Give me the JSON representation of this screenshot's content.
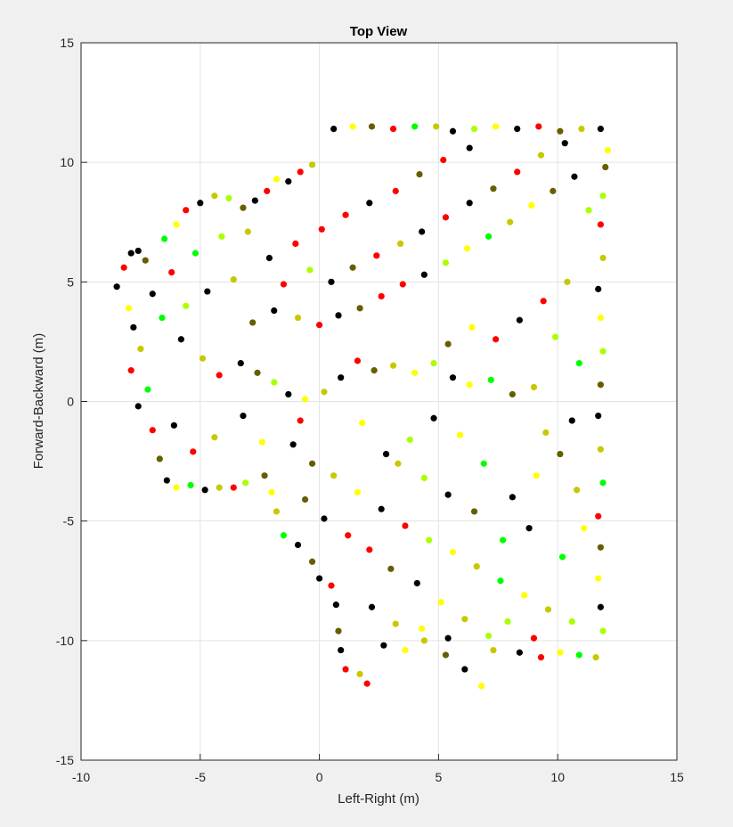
{
  "chart_data": {
    "type": "scatter",
    "title": "Top View",
    "xlabel": "Left-Right (m)",
    "ylabel": "Forward-Backward (m)",
    "xlim": [
      -10,
      15
    ],
    "ylim": [
      -15,
      15
    ],
    "xticks": [
      -10,
      -5,
      0,
      5,
      10,
      15
    ],
    "yticks": [
      -15,
      -10,
      -5,
      0,
      5,
      10,
      15
    ],
    "xtick_labels": [
      "-10",
      "-5",
      "0",
      "5",
      "10",
      "15"
    ],
    "ytick_labels": [
      "-15",
      "-10",
      "-5",
      "0",
      "5",
      "10",
      "15"
    ],
    "grid": true,
    "legend": "none",
    "point_colors": [
      "#000000",
      "#ff0000",
      "#ffff00",
      "#00ff00",
      "#c8c800",
      "#665e00",
      "#aaff00"
    ],
    "region_note": "point cloud of ~2500 markers; sampled representative points below",
    "series": [
      {
        "values": [
          [
            -8.5,
            4.8
          ],
          [
            -8.2,
            5.6
          ],
          [
            -7.9,
            6.2
          ],
          [
            -7.6,
            6.3
          ],
          [
            -7.3,
            5.9
          ],
          [
            -8.0,
            3.9
          ],
          [
            -7.8,
            3.1
          ],
          [
            -7.5,
            2.2
          ],
          [
            -7.9,
            1.3
          ],
          [
            -7.2,
            0.5
          ],
          [
            -7.6,
            -0.2
          ],
          [
            -7.0,
            -1.2
          ],
          [
            -6.7,
            -2.4
          ],
          [
            -6.4,
            -3.3
          ],
          [
            -6.0,
            -3.6
          ],
          [
            -5.4,
            -3.5
          ],
          [
            -4.8,
            -3.7
          ],
          [
            -4.2,
            -3.6
          ],
          [
            -3.6,
            -3.6
          ],
          [
            -3.1,
            -3.4
          ],
          [
            -6.5,
            6.8
          ],
          [
            -6.0,
            7.4
          ],
          [
            -5.6,
            8.0
          ],
          [
            -5.0,
            8.3
          ],
          [
            -4.4,
            8.6
          ],
          [
            -3.8,
            8.5
          ],
          [
            -3.2,
            8.1
          ],
          [
            -2.7,
            8.4
          ],
          [
            -2.2,
            8.8
          ],
          [
            -1.8,
            9.3
          ],
          [
            -1.3,
            9.2
          ],
          [
            -0.8,
            9.6
          ],
          [
            -0.3,
            9.9
          ],
          [
            0.6,
            11.4
          ],
          [
            1.4,
            11.5
          ],
          [
            2.2,
            11.5
          ],
          [
            3.1,
            11.4
          ],
          [
            4.0,
            11.5
          ],
          [
            4.9,
            11.5
          ],
          [
            5.6,
            11.3
          ],
          [
            6.5,
            11.4
          ],
          [
            7.4,
            11.5
          ],
          [
            8.3,
            11.4
          ],
          [
            9.2,
            11.5
          ],
          [
            10.1,
            11.3
          ],
          [
            11.0,
            11.4
          ],
          [
            11.8,
            11.4
          ],
          [
            12.1,
            10.5
          ],
          [
            12.0,
            9.8
          ],
          [
            11.9,
            8.6
          ],
          [
            11.8,
            7.4
          ],
          [
            11.9,
            6.0
          ],
          [
            11.7,
            4.7
          ],
          [
            11.8,
            3.5
          ],
          [
            11.9,
            2.1
          ],
          [
            11.8,
            0.7
          ],
          [
            11.7,
            -0.6
          ],
          [
            11.8,
            -2.0
          ],
          [
            11.9,
            -3.4
          ],
          [
            11.7,
            -4.8
          ],
          [
            11.8,
            -6.1
          ],
          [
            11.7,
            -7.4
          ],
          [
            11.8,
            -8.6
          ],
          [
            11.9,
            -9.6
          ],
          [
            11.6,
            -10.7
          ],
          [
            10.9,
            -10.6
          ],
          [
            10.1,
            -10.5
          ],
          [
            9.3,
            -10.7
          ],
          [
            8.4,
            -10.5
          ],
          [
            7.3,
            -10.4
          ],
          [
            6.8,
            -11.9
          ],
          [
            6.1,
            -11.2
          ],
          [
            5.3,
            -10.6
          ],
          [
            4.4,
            -10.0
          ],
          [
            3.6,
            -10.4
          ],
          [
            2.7,
            -10.2
          ],
          [
            2.0,
            -11.8
          ],
          [
            1.7,
            -11.4
          ],
          [
            1.1,
            -11.2
          ],
          [
            0.9,
            -10.4
          ],
          [
            0.8,
            -9.6
          ],
          [
            0.7,
            -8.5
          ],
          [
            0.5,
            -7.7
          ],
          [
            0.0,
            -7.4
          ],
          [
            -0.3,
            -6.7
          ],
          [
            -0.9,
            -6.0
          ],
          [
            -1.5,
            -5.6
          ],
          [
            -1.8,
            -4.6
          ],
          [
            -2.0,
            -3.8
          ],
          [
            -2.3,
            -3.1
          ],
          [
            -5.8,
            2.6
          ],
          [
            -4.9,
            1.8
          ],
          [
            -4.2,
            1.1
          ],
          [
            -3.3,
            1.6
          ],
          [
            -2.6,
            1.2
          ],
          [
            -1.9,
            0.8
          ],
          [
            -1.3,
            0.3
          ],
          [
            -0.6,
            0.1
          ],
          [
            0.2,
            0.4
          ],
          [
            0.9,
            1.0
          ],
          [
            1.6,
            1.7
          ],
          [
            2.3,
            1.3
          ],
          [
            3.1,
            1.5
          ],
          [
            4.0,
            1.2
          ],
          [
            4.8,
            1.6
          ],
          [
            5.6,
            1.0
          ],
          [
            6.3,
            0.7
          ],
          [
            7.2,
            0.9
          ],
          [
            8.1,
            0.3
          ],
          [
            9.0,
            0.6
          ],
          [
            -2.8,
            3.3
          ],
          [
            -1.9,
            3.8
          ],
          [
            -0.9,
            3.5
          ],
          [
            0.0,
            3.2
          ],
          [
            0.8,
            3.6
          ],
          [
            1.7,
            3.9
          ],
          [
            2.6,
            4.4
          ],
          [
            3.5,
            4.9
          ],
          [
            4.4,
            5.3
          ],
          [
            5.3,
            5.8
          ],
          [
            6.2,
            6.4
          ],
          [
            7.1,
            6.9
          ],
          [
            8.0,
            7.5
          ],
          [
            8.9,
            8.2
          ],
          [
            9.8,
            8.8
          ],
          [
            10.7,
            9.4
          ],
          [
            -1.0,
            6.6
          ],
          [
            0.1,
            7.2
          ],
          [
            1.1,
            7.8
          ],
          [
            2.1,
            8.3
          ],
          [
            3.2,
            8.8
          ],
          [
            4.2,
            9.5
          ],
          [
            5.2,
            10.1
          ],
          [
            6.3,
            10.6
          ],
          [
            -3.6,
            5.1
          ],
          [
            -4.7,
            4.6
          ],
          [
            -5.6,
            4.0
          ],
          [
            -6.6,
            3.5
          ],
          [
            -3.2,
            -0.6
          ],
          [
            -4.4,
            -1.5
          ],
          [
            -5.3,
            -2.1
          ],
          [
            -6.1,
            -1.0
          ],
          [
            -1.1,
            -1.8
          ],
          [
            -0.3,
            -2.6
          ],
          [
            0.6,
            -3.1
          ],
          [
            1.6,
            -3.8
          ],
          [
            2.6,
            -4.5
          ],
          [
            3.6,
            -5.2
          ],
          [
            4.6,
            -5.8
          ],
          [
            5.6,
            -6.3
          ],
          [
            6.6,
            -6.9
          ],
          [
            7.6,
            -7.5
          ],
          [
            8.6,
            -8.1
          ],
          [
            9.6,
            -8.7
          ],
          [
            10.6,
            -9.2
          ],
          [
            2.1,
            -6.2
          ],
          [
            3.0,
            -7.0
          ],
          [
            4.1,
            -7.6
          ],
          [
            5.1,
            -8.4
          ],
          [
            6.1,
            -9.1
          ],
          [
            7.1,
            -9.8
          ],
          [
            8.1,
            -4.0
          ],
          [
            9.1,
            -3.1
          ],
          [
            10.1,
            -2.2
          ],
          [
            6.9,
            -2.6
          ],
          [
            5.9,
            -1.4
          ],
          [
            4.8,
            -0.7
          ],
          [
            3.8,
            -1.6
          ],
          [
            2.8,
            -2.2
          ],
          [
            1.8,
            -0.9
          ],
          [
            10.4,
            5.0
          ],
          [
            9.4,
            4.2
          ],
          [
            8.4,
            3.4
          ],
          [
            7.4,
            2.6
          ],
          [
            6.4,
            3.1
          ],
          [
            5.4,
            2.4
          ],
          [
            9.9,
            2.7
          ],
          [
            10.9,
            1.6
          ],
          [
            10.6,
            -0.8
          ],
          [
            9.5,
            -1.3
          ],
          [
            -7.0,
            4.5
          ],
          [
            -6.2,
            5.4
          ],
          [
            -5.2,
            6.2
          ],
          [
            -4.1,
            6.9
          ],
          [
            -3.0,
            7.1
          ],
          [
            -2.1,
            6.0
          ],
          [
            -1.5,
            4.9
          ],
          [
            -0.4,
            5.5
          ],
          [
            0.5,
            5.0
          ],
          [
            1.4,
            5.6
          ],
          [
            2.4,
            6.1
          ],
          [
            3.4,
            6.6
          ],
          [
            4.3,
            7.1
          ],
          [
            5.3,
            7.7
          ],
          [
            6.3,
            8.3
          ],
          [
            7.3,
            8.9
          ],
          [
            8.3,
            9.6
          ],
          [
            9.3,
            10.3
          ],
          [
            10.3,
            10.8
          ],
          [
            11.3,
            8.0
          ],
          [
            0.2,
            -4.9
          ],
          [
            -0.6,
            -4.1
          ],
          [
            1.2,
            -5.6
          ],
          [
            2.2,
            -8.6
          ],
          [
            3.2,
            -9.3
          ],
          [
            4.3,
            -9.5
          ],
          [
            5.4,
            -9.9
          ],
          [
            7.9,
            -9.2
          ],
          [
            9.0,
            -9.9
          ],
          [
            10.2,
            -6.5
          ],
          [
            11.1,
            -5.3
          ],
          [
            10.8,
            -3.7
          ],
          [
            8.8,
            -5.3
          ],
          [
            7.7,
            -5.8
          ],
          [
            6.5,
            -4.6
          ],
          [
            5.4,
            -3.9
          ],
          [
            4.4,
            -3.2
          ],
          [
            3.3,
            -2.6
          ],
          [
            -0.8,
            -0.8
          ],
          [
            -2.4,
            -1.7
          ]
        ],
        "colors": [
          0,
          1,
          0,
          0,
          5,
          2,
          0,
          4,
          1,
          3,
          0,
          1,
          5,
          0,
          2,
          3,
          0,
          4,
          1,
          6,
          3,
          2,
          1,
          0,
          4,
          6,
          5,
          0,
          1,
          2,
          0,
          1,
          4,
          0,
          2,
          5,
          1,
          3,
          4,
          0,
          6,
          2,
          0,
          1,
          5,
          4,
          0,
          2,
          5,
          6,
          1,
          4,
          0,
          2,
          6,
          5,
          0,
          4,
          3,
          1,
          5,
          2,
          0,
          6,
          4,
          3,
          2,
          1,
          0,
          4,
          2,
          0,
          5,
          4,
          2,
          0,
          1,
          4,
          1,
          0,
          5,
          0,
          1,
          0,
          5,
          0,
          3,
          4,
          2,
          5,
          0,
          4,
          1,
          0,
          5,
          6,
          0,
          2,
          4,
          0,
          1,
          5,
          4,
          2,
          6,
          0,
          2,
          3,
          5,
          4,
          5,
          0,
          4,
          1,
          0,
          5,
          1,
          1,
          0,
          6,
          2,
          3,
          4,
          2,
          5,
          0,
          1,
          1,
          1,
          0,
          1,
          5,
          1,
          0,
          4,
          0,
          6,
          3,
          0,
          4,
          1,
          0,
          0,
          5,
          4,
          2,
          0,
          1,
          6,
          2,
          4,
          3,
          2,
          4,
          6,
          1,
          5,
          0,
          2,
          4,
          6,
          0,
          2,
          5,
          3,
          2,
          0,
          6,
          0,
          2,
          4,
          1,
          0,
          1,
          2,
          5,
          6,
          3,
          0,
          4,
          0,
          1,
          3,
          6,
          4,
          0,
          1,
          6,
          0,
          5,
          1,
          4,
          0,
          1,
          0,
          5,
          1,
          4,
          0,
          6,
          0,
          5,
          1,
          0,
          4,
          2,
          0,
          6,
          1,
          3,
          2,
          4,
          0,
          3,
          5,
          0,
          6,
          4,
          1,
          2
        ]
      }
    ]
  }
}
